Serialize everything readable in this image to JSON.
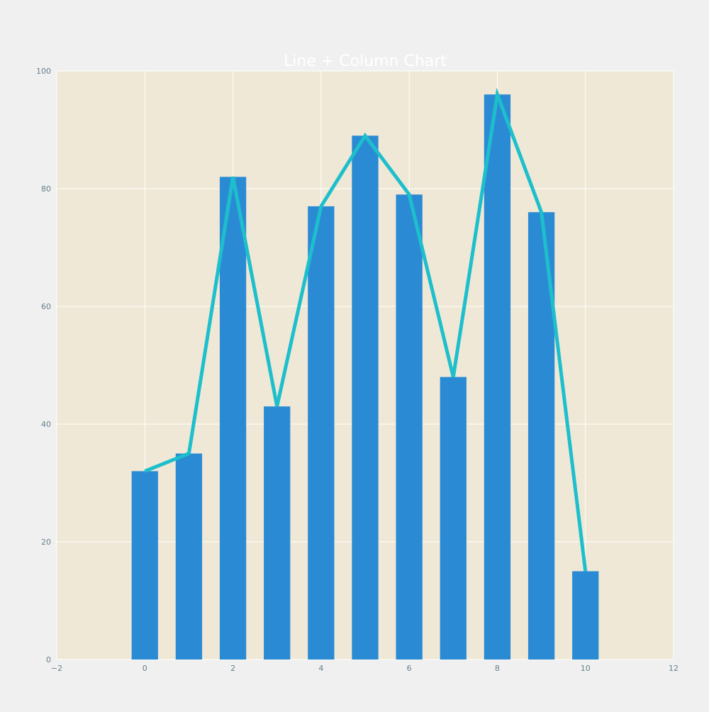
{
  "chart_data": {
    "type": "bar+line",
    "title": "Line + Column Chart",
    "xlabel": "",
    "ylabel": "",
    "x": [
      0,
      1,
      2,
      3,
      4,
      5,
      6,
      7,
      8,
      9,
      10
    ],
    "bar_values": [
      32,
      35,
      82,
      43,
      77,
      89,
      79,
      48,
      96,
      76,
      15
    ],
    "line_values": [
      32,
      35,
      82,
      43,
      77,
      89,
      79,
      48,
      96,
      76,
      15
    ],
    "xlim": [
      -2,
      12
    ],
    "ylim": [
      0,
      100
    ],
    "x_ticks": [
      -2,
      0,
      2,
      4,
      6,
      8,
      10,
      12
    ],
    "x_tick_labels": [
      "−2",
      "0",
      "2",
      "4",
      "6",
      "8",
      "10",
      "12"
    ],
    "y_ticks": [
      0,
      20,
      40,
      60,
      80,
      100
    ],
    "y_tick_labels": [
      "0",
      "20",
      "40",
      "60",
      "80",
      "100"
    ],
    "grid": true,
    "legend": "none",
    "colors": {
      "background": "#f0f0f0",
      "plot_background": "#efe8d6",
      "grid": "#ffffff",
      "bar": "#2a8bd4",
      "line": "#1dbfcc",
      "title": "#ffffff",
      "tick_text": "#66808a"
    }
  }
}
